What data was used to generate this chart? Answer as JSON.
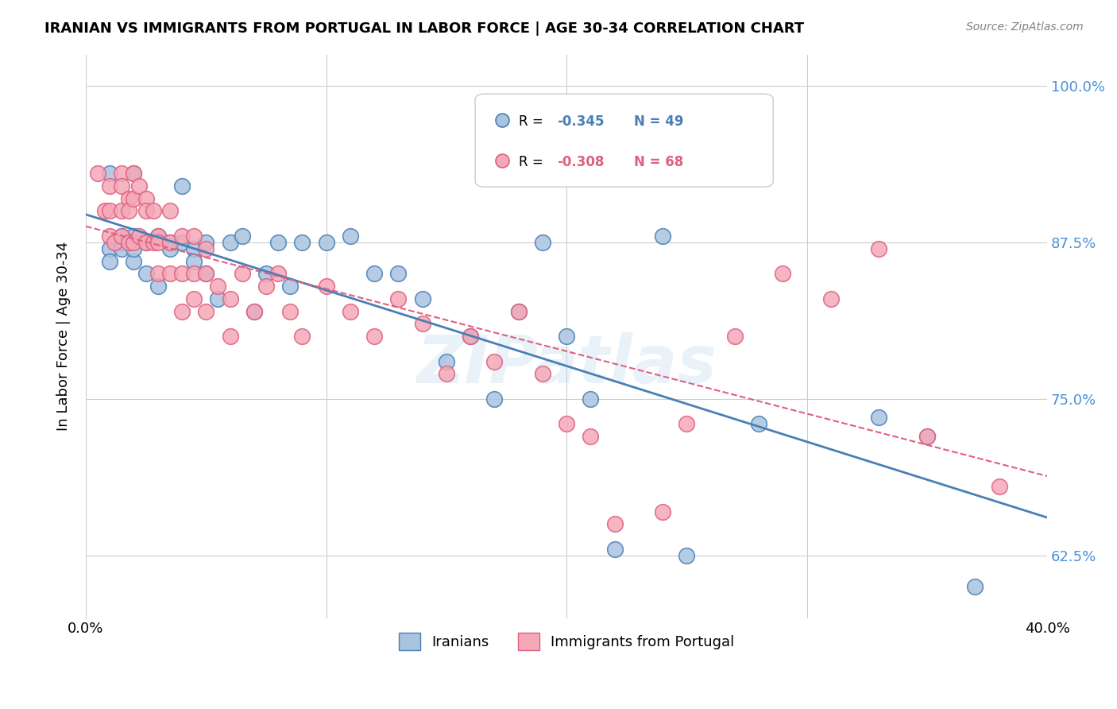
{
  "title": "IRANIAN VS IMMIGRANTS FROM PORTUGAL IN LABOR FORCE | AGE 30-34 CORRELATION CHART",
  "source": "Source: ZipAtlas.com",
  "ylabel": "In Labor Force | Age 30-34",
  "xlim": [
    0.0,
    0.4
  ],
  "ylim": [
    0.575,
    1.025
  ],
  "yticks": [
    0.625,
    0.75,
    0.875,
    1.0
  ],
  "ytick_labels": [
    "62.5%",
    "75.0%",
    "87.5%",
    "100.0%"
  ],
  "xtick_positions": [
    0.0,
    0.1,
    0.2,
    0.3,
    0.4
  ],
  "xtick_labels": [
    "0.0%",
    "",
    "",
    "",
    "40.0%"
  ],
  "blue_color": "#a8c4e0",
  "pink_color": "#f4a8b8",
  "blue_line_color": "#4a7fb5",
  "pink_line_color": "#e06080",
  "legend_blue_r": "-0.345",
  "legend_blue_n": "49",
  "legend_pink_r": "-0.308",
  "legend_pink_n": "68",
  "watermark": "ZIPatlas",
  "blue_scatter_x": [
    0.02,
    0.01,
    0.01,
    0.01,
    0.015,
    0.015,
    0.015,
    0.02,
    0.02,
    0.02,
    0.025,
    0.025,
    0.03,
    0.03,
    0.035,
    0.035,
    0.04,
    0.04,
    0.045,
    0.045,
    0.05,
    0.05,
    0.055,
    0.06,
    0.065,
    0.07,
    0.075,
    0.08,
    0.085,
    0.09,
    0.1,
    0.11,
    0.12,
    0.13,
    0.14,
    0.15,
    0.16,
    0.17,
    0.18,
    0.19,
    0.2,
    0.21,
    0.22,
    0.24,
    0.25,
    0.28,
    0.33,
    0.35,
    0.37
  ],
  "blue_scatter_y": [
    0.88,
    0.87,
    0.86,
    0.93,
    0.875,
    0.88,
    0.87,
    0.86,
    0.93,
    0.87,
    0.875,
    0.85,
    0.88,
    0.84,
    0.875,
    0.87,
    0.92,
    0.875,
    0.87,
    0.86,
    0.85,
    0.875,
    0.83,
    0.875,
    0.88,
    0.82,
    0.85,
    0.875,
    0.84,
    0.875,
    0.875,
    0.88,
    0.85,
    0.85,
    0.83,
    0.78,
    0.8,
    0.75,
    0.82,
    0.875,
    0.8,
    0.75,
    0.63,
    0.88,
    0.625,
    0.73,
    0.735,
    0.72,
    0.6
  ],
  "pink_scatter_x": [
    0.005,
    0.008,
    0.01,
    0.01,
    0.01,
    0.012,
    0.015,
    0.015,
    0.015,
    0.015,
    0.018,
    0.018,
    0.018,
    0.02,
    0.02,
    0.02,
    0.022,
    0.022,
    0.025,
    0.025,
    0.025,
    0.028,
    0.028,
    0.03,
    0.03,
    0.03,
    0.035,
    0.035,
    0.035,
    0.04,
    0.04,
    0.04,
    0.045,
    0.045,
    0.045,
    0.05,
    0.05,
    0.05,
    0.055,
    0.06,
    0.06,
    0.065,
    0.07,
    0.075,
    0.08,
    0.085,
    0.09,
    0.1,
    0.11,
    0.12,
    0.13,
    0.14,
    0.15,
    0.16,
    0.17,
    0.18,
    0.19,
    0.2,
    0.21,
    0.22,
    0.24,
    0.25,
    0.27,
    0.29,
    0.31,
    0.33,
    0.35,
    0.38
  ],
  "pink_scatter_y": [
    0.93,
    0.9,
    0.92,
    0.9,
    0.88,
    0.875,
    0.93,
    0.92,
    0.9,
    0.88,
    0.91,
    0.9,
    0.875,
    0.93,
    0.91,
    0.875,
    0.92,
    0.88,
    0.91,
    0.9,
    0.875,
    0.9,
    0.875,
    0.88,
    0.875,
    0.85,
    0.9,
    0.875,
    0.85,
    0.88,
    0.85,
    0.82,
    0.88,
    0.85,
    0.83,
    0.87,
    0.85,
    0.82,
    0.84,
    0.83,
    0.8,
    0.85,
    0.82,
    0.84,
    0.85,
    0.82,
    0.8,
    0.84,
    0.82,
    0.8,
    0.83,
    0.81,
    0.77,
    0.8,
    0.78,
    0.82,
    0.77,
    0.73,
    0.72,
    0.65,
    0.66,
    0.73,
    0.8,
    0.85,
    0.83,
    0.87,
    0.72,
    0.68
  ]
}
